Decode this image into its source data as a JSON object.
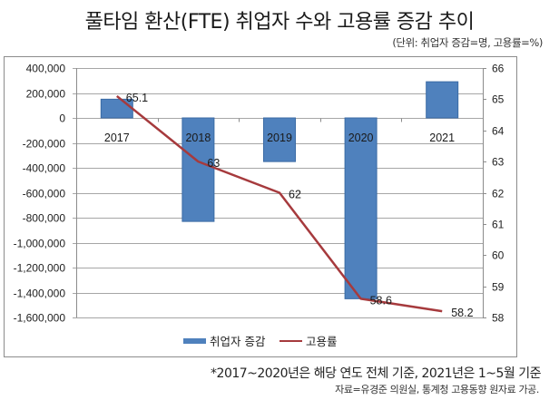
{
  "title": "풀타임 환산(FTE) 취업자 수와 고용률 증감 추이",
  "unit_note": "(단위: 취업자 증감=명, 고용률=%)",
  "footnote": "*2017~2020년은 해당 연도 전체 기준, 2021년은 1~5월 기준",
  "source": "자료=유경준 의원실, 통계청 고용동향 원자료 가공.",
  "colors": {
    "bar": "#4F81BD",
    "bar_border": "#3B6BA5",
    "line": "#A63A3D",
    "grid": "#A6A6A6"
  },
  "chart_data": {
    "type": "bar+line",
    "title": "풀타임 환산(FTE) 취업자 수와 고용률 증감 추이",
    "categories": [
      "2017",
      "2018",
      "2019",
      "2020",
      "2021"
    ],
    "series": [
      {
        "name": "취업자 증감",
        "type": "bar",
        "axis": "left",
        "values": [
          150000,
          -830000,
          -350000,
          -1450000,
          290000
        ]
      },
      {
        "name": "고용률",
        "type": "line",
        "axis": "right",
        "values": [
          65.1,
          63,
          62,
          58.6,
          58.2
        ],
        "labels": [
          "65.1",
          "63",
          "62",
          "58.6",
          "58.2"
        ]
      }
    ],
    "y_left": {
      "min": -1600000,
      "max": 400000,
      "step": 200000,
      "tick_labels": [
        "400,000",
        "200,000",
        "0",
        "-200,000",
        "-400,000",
        "-600,000",
        "-800,000",
        "-1,000,000",
        "-1,200,000",
        "-1,400,000",
        "-1,600,000"
      ]
    },
    "y_right": {
      "min": 58,
      "max": 66,
      "step": 1,
      "tick_labels": [
        "66",
        "65",
        "64",
        "63",
        "62",
        "61",
        "60",
        "59",
        "58"
      ]
    },
    "grid": true,
    "legend": {
      "position": "bottom",
      "entries": [
        "취업자 증감",
        "고용률"
      ]
    }
  }
}
